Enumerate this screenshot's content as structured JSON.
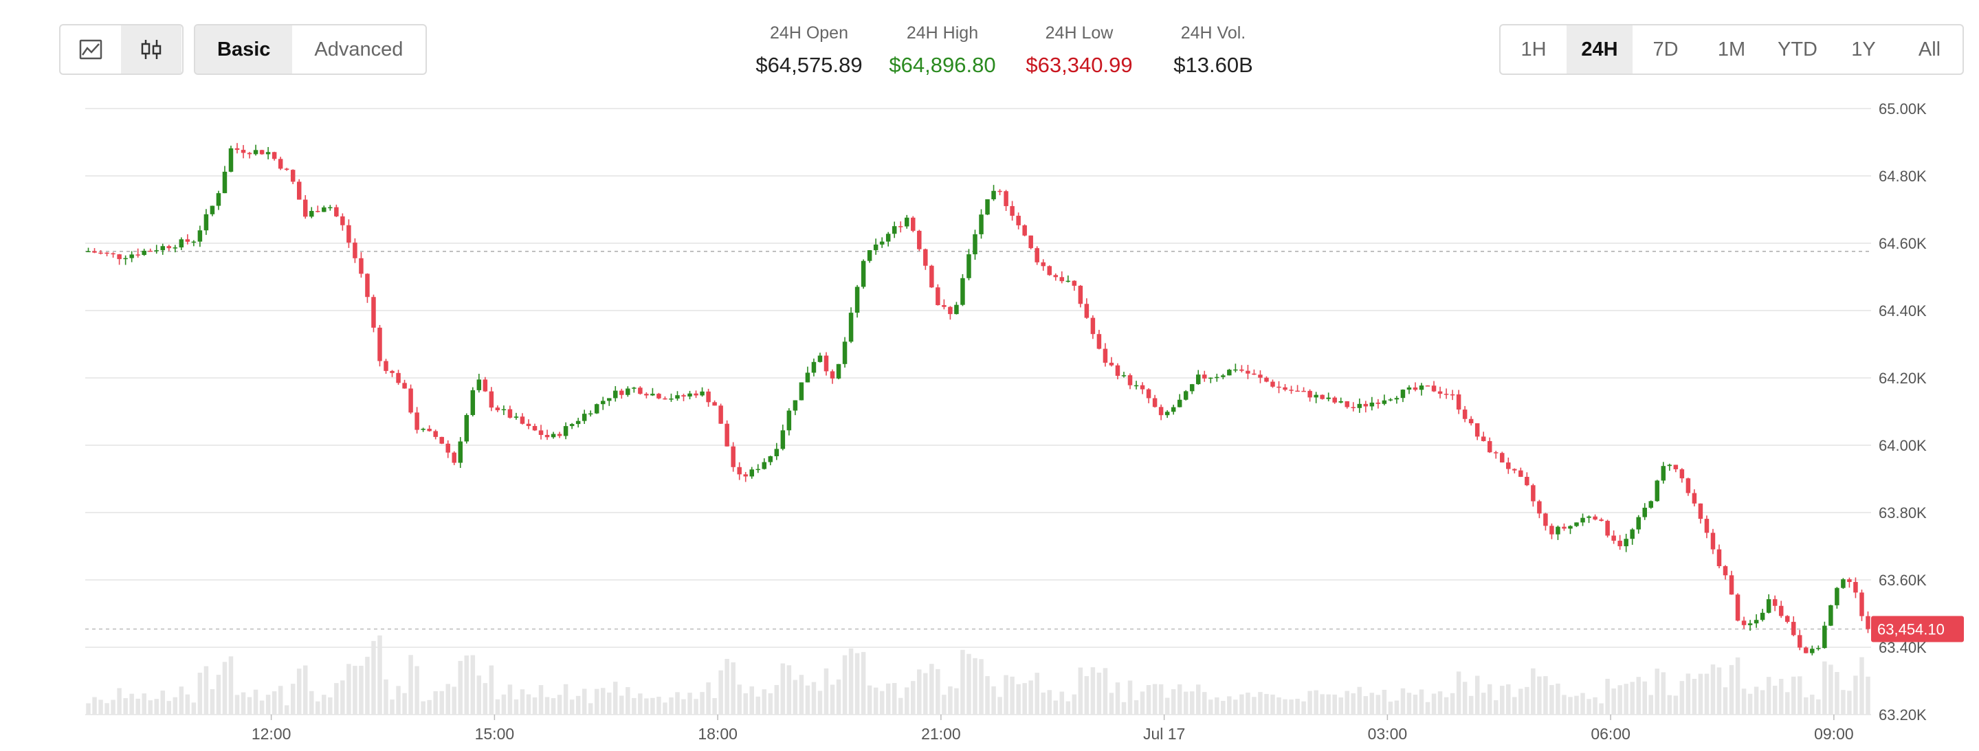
{
  "toolbar": {
    "chart_types": [
      {
        "name": "line-chart-icon",
        "active": false
      },
      {
        "name": "candlestick-chart-icon",
        "active": true
      }
    ],
    "modes": [
      {
        "label": "Basic",
        "active": true
      },
      {
        "label": "Advanced",
        "active": false
      }
    ],
    "ranges": [
      {
        "label": "1H",
        "active": false
      },
      {
        "label": "24H",
        "active": true
      },
      {
        "label": "7D",
        "active": false
      },
      {
        "label": "1M",
        "active": false
      },
      {
        "label": "YTD",
        "active": false
      },
      {
        "label": "1Y",
        "active": false
      },
      {
        "label": "All",
        "active": false
      }
    ]
  },
  "stats": {
    "open": {
      "label": "24H Open",
      "value": "$64,575.89"
    },
    "high": {
      "label": "24H High",
      "value": "$64,896.80"
    },
    "low": {
      "label": "24H Low",
      "value": "$63,340.99"
    },
    "volume": {
      "label": "24H Vol.",
      "value": "$13.60B"
    }
  },
  "colors": {
    "up": "#2a8a1f",
    "down": "#e84552",
    "high_text": "#2a8a1f",
    "low_text": "#c9161f",
    "volume_bar": "#e6e6e6",
    "grid": "#e4e4e4",
    "price_tag_bg": "#e84552"
  },
  "chart_data": {
    "type": "candlestick",
    "title": "",
    "xlabel": "",
    "ylabel": "",
    "ylim": [
      63200,
      65000
    ],
    "y_ticks": [
      "65.00K",
      "64.80K",
      "64.60K",
      "64.40K",
      "64.20K",
      "64.00K",
      "63.80K",
      "63.60K",
      "63.40K",
      "63.20K"
    ],
    "y_tick_values": [
      65000,
      64800,
      64600,
      64400,
      64200,
      64000,
      63800,
      63600,
      63400,
      63200
    ],
    "x_range_hours": [
      9.5,
      33.5
    ],
    "x_ticks": [
      "12:00",
      "15:00",
      "18:00",
      "21:00",
      "Jul 17",
      "03:00",
      "06:00",
      "09:00"
    ],
    "x_tick_values": [
      12,
      15,
      18,
      21,
      24,
      27,
      30,
      33
    ],
    "open_reference": 64575.89,
    "current_price": 63454.1,
    "current_price_label": "63,454.10",
    "grid": true,
    "volume_shown": true,
    "waypoints": [
      [
        9.5,
        64580
      ],
      [
        10.0,
        64560
      ],
      [
        11.0,
        64610
      ],
      [
        11.3,
        64730
      ],
      [
        11.5,
        64880
      ],
      [
        12.0,
        64870
      ],
      [
        12.3,
        64800
      ],
      [
        12.5,
        64680
      ],
      [
        12.8,
        64720
      ],
      [
        13.0,
        64650
      ],
      [
        13.3,
        64480
      ],
      [
        13.5,
        64250
      ],
      [
        13.8,
        64180
      ],
      [
        14.0,
        64050
      ],
      [
        14.3,
        64020
      ],
      [
        14.5,
        63950
      ],
      [
        14.8,
        64200
      ],
      [
        15.0,
        64120
      ],
      [
        15.3,
        64080
      ],
      [
        15.5,
        64050
      ],
      [
        15.8,
        64020
      ],
      [
        16.0,
        64050
      ],
      [
        16.3,
        64100
      ],
      [
        16.6,
        64150
      ],
      [
        16.9,
        64170
      ],
      [
        17.2,
        64150
      ],
      [
        17.5,
        64140
      ],
      [
        17.8,
        64160
      ],
      [
        18.0,
        64120
      ],
      [
        18.3,
        63900
      ],
      [
        18.5,
        63920
      ],
      [
        18.8,
        63980
      ],
      [
        19.0,
        64100
      ],
      [
        19.2,
        64200
      ],
      [
        19.4,
        64280
      ],
      [
        19.6,
        64180
      ],
      [
        19.8,
        64350
      ],
      [
        20.0,
        64550
      ],
      [
        20.3,
        64620
      ],
      [
        20.6,
        64680
      ],
      [
        20.8,
        64560
      ],
      [
        21.0,
        64420
      ],
      [
        21.2,
        64380
      ],
      [
        21.4,
        64550
      ],
      [
        21.6,
        64700
      ],
      [
        21.8,
        64760
      ],
      [
        22.0,
        64690
      ],
      [
        22.3,
        64560
      ],
      [
        22.5,
        64510
      ],
      [
        22.8,
        64480
      ],
      [
        23.0,
        64380
      ],
      [
        23.2,
        64260
      ],
      [
        23.5,
        64200
      ],
      [
        23.8,
        64150
      ],
      [
        24.0,
        64080
      ],
      [
        24.3,
        64140
      ],
      [
        24.5,
        64200
      ],
      [
        24.8,
        64210
      ],
      [
        25.0,
        64230
      ],
      [
        25.3,
        64200
      ],
      [
        25.6,
        64170
      ],
      [
        26.0,
        64150
      ],
      [
        26.3,
        64130
      ],
      [
        26.6,
        64110
      ],
      [
        27.0,
        64140
      ],
      [
        27.3,
        64160
      ],
      [
        27.6,
        64170
      ],
      [
        27.9,
        64150
      ],
      [
        28.1,
        64080
      ],
      [
        28.3,
        64010
      ],
      [
        28.6,
        63950
      ],
      [
        28.9,
        63880
      ],
      [
        29.2,
        63740
      ],
      [
        29.5,
        63760
      ],
      [
        29.8,
        63800
      ],
      [
        30.0,
        63740
      ],
      [
        30.2,
        63700
      ],
      [
        30.4,
        63770
      ],
      [
        30.6,
        63850
      ],
      [
        30.8,
        63960
      ],
      [
        31.0,
        63900
      ],
      [
        31.2,
        63800
      ],
      [
        31.4,
        63700
      ],
      [
        31.6,
        63600
      ],
      [
        31.8,
        63450
      ],
      [
        32.0,
        63480
      ],
      [
        32.2,
        63550
      ],
      [
        32.4,
        63480
      ],
      [
        32.6,
        63400
      ],
      [
        32.8,
        63380
      ],
      [
        33.0,
        63520
      ],
      [
        33.2,
        63630
      ],
      [
        33.5,
        63454
      ]
    ]
  }
}
